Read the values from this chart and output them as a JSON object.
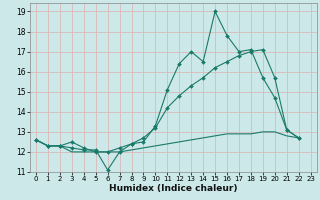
{
  "xlabel": "Humidex (Indice chaleur)",
  "xlim": [
    -0.5,
    23.5
  ],
  "ylim": [
    11,
    19.4
  ],
  "yticks": [
    11,
    12,
    13,
    14,
    15,
    16,
    17,
    18,
    19
  ],
  "xticks": [
    0,
    1,
    2,
    3,
    4,
    5,
    6,
    7,
    8,
    9,
    10,
    11,
    12,
    13,
    14,
    15,
    16,
    17,
    18,
    19,
    20,
    21,
    22,
    23
  ],
  "bg_color": "#cce8e8",
  "grid_color": "#dbb0b0",
  "line_color": "#1a7a6a",
  "series1_y": [
    12.6,
    12.3,
    12.3,
    12.2,
    12.1,
    12.1,
    11.1,
    12.0,
    12.4,
    12.5,
    13.3,
    15.1,
    16.4,
    17.0,
    16.5,
    19.0,
    17.8,
    17.0,
    17.1,
    15.7,
    14.7,
    13.1,
    12.7,
    null
  ],
  "series2_y": [
    12.6,
    12.3,
    12.3,
    12.5,
    12.2,
    12.0,
    12.0,
    12.2,
    12.4,
    12.7,
    13.2,
    14.2,
    14.8,
    15.3,
    15.7,
    16.2,
    16.5,
    16.8,
    17.0,
    17.1,
    15.7,
    13.1,
    12.7,
    null
  ],
  "series3_y": [
    12.6,
    12.3,
    12.3,
    12.0,
    12.0,
    12.0,
    12.0,
    12.0,
    12.1,
    12.2,
    12.3,
    12.4,
    12.5,
    12.6,
    12.7,
    12.8,
    12.9,
    12.9,
    12.9,
    13.0,
    13.0,
    12.8,
    12.7,
    null
  ]
}
